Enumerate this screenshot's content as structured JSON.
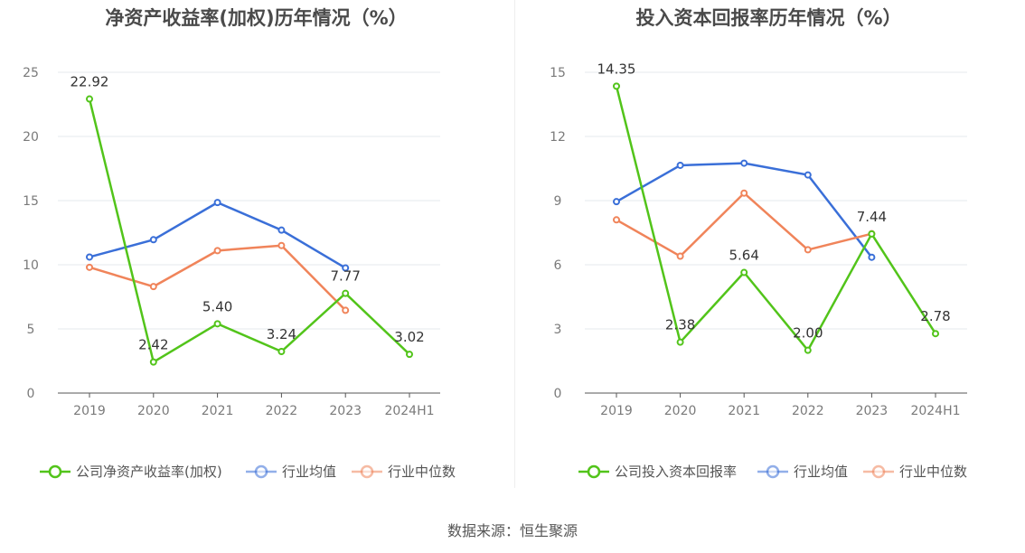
{
  "source_text": "数据来源：恒生聚源",
  "chart_data": [
    {
      "type": "line",
      "title": "净资产收益率(加权)历年情况（%）",
      "categories": [
        "2019",
        "2020",
        "2021",
        "2022",
        "2023",
        "2024H1"
      ],
      "ylim": [
        0,
        25
      ],
      "yticks": [
        0,
        5,
        10,
        15,
        20,
        25
      ],
      "grid": true,
      "legend_position": "bottom",
      "series": [
        {
          "name": "公司净资产收益率(加权)",
          "color": "#52c41a",
          "values": [
            22.92,
            2.42,
            5.4,
            3.24,
            7.77,
            3.02
          ],
          "labels": [
            "22.92",
            "2.42",
            "5.40",
            "3.24",
            "7.77",
            "3.02"
          ]
        },
        {
          "name": "行业均值",
          "color": "#3a6fd8",
          "values": [
            10.6,
            11.95,
            14.85,
            12.7,
            9.75,
            null
          ]
        },
        {
          "name": "行业中位数",
          "color": "#f0845a",
          "values": [
            9.8,
            8.3,
            11.1,
            11.5,
            6.45,
            null
          ]
        }
      ]
    },
    {
      "type": "line",
      "title": "投入资本回报率历年情况（%）",
      "categories": [
        "2019",
        "2020",
        "2021",
        "2022",
        "2023",
        "2024H1"
      ],
      "ylim": [
        0,
        15
      ],
      "yticks": [
        0,
        3,
        6,
        9,
        12,
        15
      ],
      "grid": true,
      "legend_position": "bottom",
      "series": [
        {
          "name": "公司投入资本回报率",
          "color": "#52c41a",
          "values": [
            14.35,
            2.38,
            5.64,
            2.0,
            7.44,
            2.78
          ],
          "labels": [
            "14.35",
            "2.38",
            "5.64",
            "2.00",
            "7.44",
            "2.78"
          ]
        },
        {
          "name": "行业均值",
          "color": "#3a6fd8",
          "values": [
            8.95,
            10.65,
            10.75,
            10.2,
            6.35,
            null
          ]
        },
        {
          "name": "行业中位数",
          "color": "#f0845a",
          "values": [
            8.1,
            6.4,
            9.35,
            6.7,
            7.45,
            null
          ]
        }
      ]
    }
  ]
}
